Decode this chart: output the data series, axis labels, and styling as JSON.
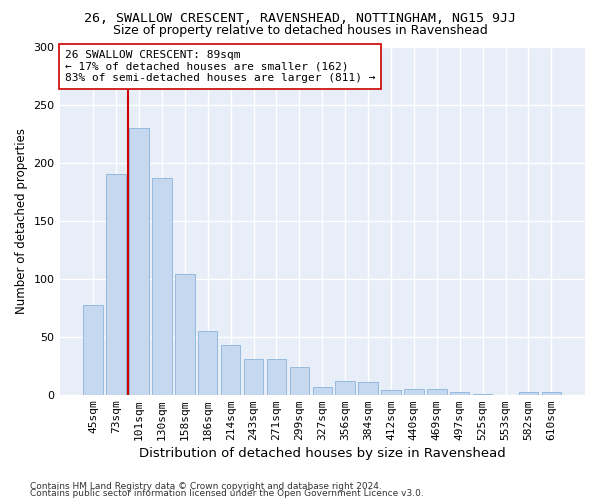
{
  "title1": "26, SWALLOW CRESCENT, RAVENSHEAD, NOTTINGHAM, NG15 9JJ",
  "title2": "Size of property relative to detached houses in Ravenshead",
  "xlabel": "Distribution of detached houses by size in Ravenshead",
  "ylabel": "Number of detached properties",
  "footer1": "Contains HM Land Registry data © Crown copyright and database right 2024.",
  "footer2": "Contains public sector information licensed under the Open Government Licence v3.0.",
  "categories": [
    "45sqm",
    "73sqm",
    "101sqm",
    "130sqm",
    "158sqm",
    "186sqm",
    "214sqm",
    "243sqm",
    "271sqm",
    "299sqm",
    "327sqm",
    "356sqm",
    "384sqm",
    "412sqm",
    "440sqm",
    "469sqm",
    "497sqm",
    "525sqm",
    "553sqm",
    "582sqm",
    "610sqm"
  ],
  "values": [
    77,
    190,
    230,
    187,
    104,
    55,
    43,
    31,
    31,
    24,
    7,
    12,
    11,
    4,
    5,
    5,
    2,
    1,
    0,
    2,
    2
  ],
  "bar_color": "#c5d8f0",
  "bar_edge_color": "#8ab4d8",
  "vline_x": 1.5,
  "vline_color": "#cc0000",
  "annotation_text": "26 SWALLOW CRESCENT: 89sqm\n← 17% of detached houses are smaller (162)\n83% of semi-detached houses are larger (811) →",
  "annotation_box_color": "#ffffff",
  "annotation_box_edge": "#cc0000",
  "ylim": [
    0,
    300
  ],
  "yticks": [
    0,
    50,
    100,
    150,
    200,
    250,
    300
  ],
  "bg_color": "#e8eef8",
  "grid_color": "#ffffff",
  "fig_bg_color": "#ffffff",
  "title1_fontsize": 9.5,
  "title2_fontsize": 9,
  "xlabel_fontsize": 9.5,
  "ylabel_fontsize": 8.5,
  "tick_fontsize": 8,
  "annotation_fontsize": 8,
  "footer_fontsize": 6.5
}
